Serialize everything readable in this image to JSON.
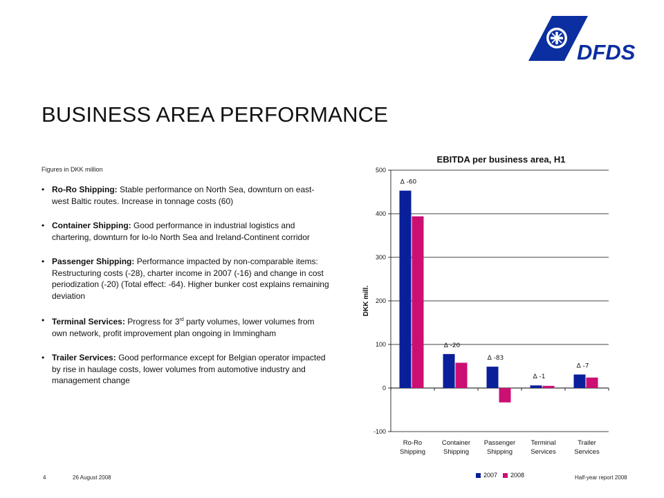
{
  "brand": {
    "name": "DFDS",
    "color": "#0b2fa0"
  },
  "title": "BUSINESS AREA PERFORMANCE",
  "units_note": "Figures in DKK million",
  "bullets": [
    {
      "head": "Ro-Ro Shipping:",
      "text": "Stable performance on North Sea, downturn on east-west Baltic routes. Increase in tonnage costs (60)"
    },
    {
      "head": "Container Shipping:",
      "text": "Good performance in industrial logistics and chartering, downturn for lo-lo North Sea and Ireland-Continent corridor"
    },
    {
      "head": "Passenger Shipping:",
      "text": "Performance impacted by non-comparable items: Restructuring costs (-28), charter income in 2007 (-16) and change in cost periodization (-20) (Total effect: -64). Higher bunker cost explains remaining deviation"
    },
    {
      "head": "Terminal Services:",
      "text_a": "Progress for 3",
      "sup": "rd",
      "text_b": " party volumes, lower volumes from own network, profit improvement plan ongoing in Immingham"
    },
    {
      "head": "Trailer Services:",
      "text": "Good performance except for Belgian operator impacted by rise in haulage costs, lower volumes from automotive industry and management change"
    }
  ],
  "chart_data": {
    "type": "bar",
    "title": "EBITDA per business area, H1",
    "ylabel": "DKK mill.",
    "ylim": [
      -100,
      500
    ],
    "yticks": [
      500,
      400,
      300,
      200,
      100,
      0,
      -100
    ],
    "grid": true,
    "categories": [
      [
        "Ro-Ro",
        "Shipping"
      ],
      [
        "Container",
        "Shipping"
      ],
      [
        "Passenger",
        "Shipping"
      ],
      [
        "Terminal",
        "Services"
      ],
      [
        "Trailer",
        "Services"
      ]
    ],
    "series": [
      {
        "name": "2007",
        "color": "#0a1f9a",
        "values": [
          453,
          78,
          49,
          6,
          31
        ]
      },
      {
        "name": "2008",
        "color": "#cc0f73",
        "values": [
          394,
          58,
          -33,
          5,
          24
        ]
      }
    ],
    "annotations": [
      "∆ -60",
      "∆ -20",
      "∆ -83",
      "∆ -1",
      "∆ -7"
    ],
    "legend_position": "bottom"
  },
  "footer": {
    "page": "4",
    "date": "26 August 2008",
    "report": "Half-year report 2008"
  }
}
